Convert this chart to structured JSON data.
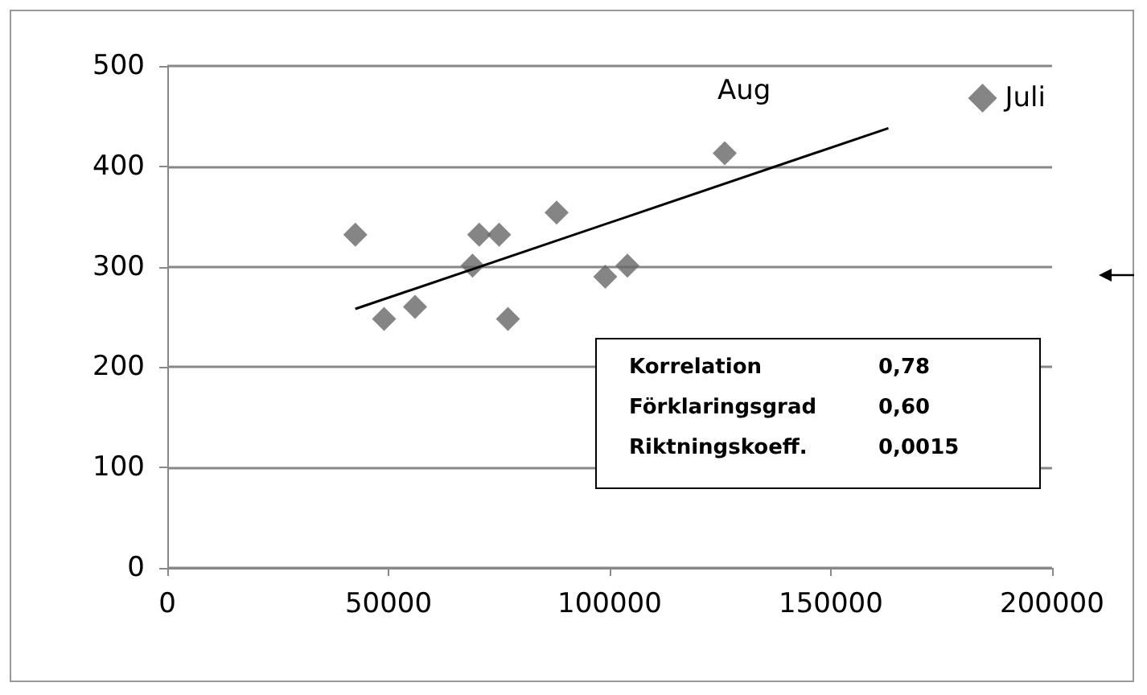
{
  "chart_data": {
    "type": "scatter",
    "x": [
      42500,
      49000,
      56000,
      69000,
      70500,
      75000,
      77000,
      88000,
      99000,
      104000,
      126000
    ],
    "series": [
      {
        "name": "Juli",
        "color": "#666666",
        "values": [
          332,
          248,
          260,
          301,
          332,
          332,
          248,
          354,
          290,
          301,
          413
        ]
      },
      {
        "type": "line",
        "marker": "none",
        "color": "#000000",
        "x": [
          42500,
          163000
        ],
        "values": [
          258,
          438
        ]
      }
    ],
    "xlim": [
      0,
      200000
    ],
    "xticks": [
      0,
      50000,
      100000,
      150000,
      200000
    ],
    "ylim": [
      0,
      500
    ],
    "yticks": [
      0,
      100,
      200,
      300,
      400,
      500
    ],
    "grid": "y",
    "legend": "top right",
    "marker": "diamond",
    "line_style": "solid",
    "annotations": [
      "Aug",
      "Korrelation",
      "0,78",
      "Förklaringsgrad",
      "0,60",
      "Riktningskoeff.",
      "0,0015"
    ]
  }
}
